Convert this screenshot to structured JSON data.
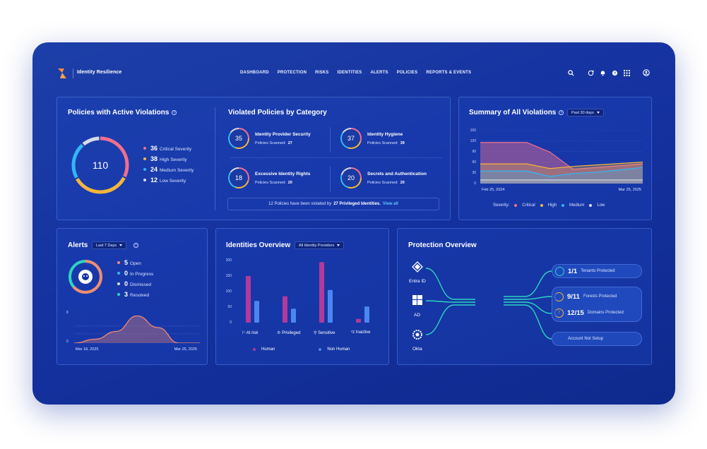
{
  "app": {
    "title": "Identity Resilience"
  },
  "nav": [
    "DASHBOARD",
    "PROTECTION",
    "RISKS",
    "IDENTITIES",
    "ALERTS",
    "POLICIES",
    "REPORTS & EVENTS"
  ],
  "top_icons": [
    "search-icon",
    "chat-icon",
    "bell-icon",
    "help-icon",
    "apps-grid-icon",
    "user-icon"
  ],
  "colors": {
    "critical": "#f06f8e",
    "high": "#f5b53c",
    "medium": "#32b6f5",
    "low": "#d7dbe6",
    "teal": "#2dd4bf",
    "human": "#b23a9a",
    "nonhuman": "#4c86f0"
  },
  "policies": {
    "title": "Policies with Active Violations",
    "total": "110",
    "items": [
      {
        "num": "36",
        "label": "Critical Severity",
        "value": 36
      },
      {
        "num": "38",
        "label": "High Severity",
        "value": 38
      },
      {
        "num": "24",
        "label": "Medium Severity",
        "value": 24
      },
      {
        "num": "12",
        "label": "Low Severity",
        "value": 12
      }
    ]
  },
  "categories": {
    "title": "Violated Policies by Category",
    "items": [
      {
        "count": "35",
        "name": "Identity Provider Security",
        "scanned_label": "Policies Scanned:",
        "scanned": "27"
      },
      {
        "count": "37",
        "name": "Identity Hygiene",
        "scanned_label": "Policies Scanned:",
        "scanned": "39"
      },
      {
        "count": "18",
        "name": "Excessive Identity Rights",
        "scanned_label": "Policies Scanned:",
        "scanned": "20"
      },
      {
        "count": "20",
        "name": "Secrets and Authentication",
        "scanned_label": "Policies Scanned:",
        "scanned": "20"
      }
    ],
    "footer_prefix": "12 Policies have been violated by",
    "footer_bold": "27 Privileged Identities.",
    "footer_link": "View all"
  },
  "summary": {
    "title": "Summary of All Violations",
    "range": "Past 30 days",
    "yticks": [
      "150",
      "120",
      "90",
      "60",
      "30",
      "0"
    ],
    "xstart": "Feb 25, 2024",
    "xend": "Mar 25, 2025",
    "legend_label": "Severity:",
    "legend": [
      "Critical",
      "High",
      "Medium",
      "Low"
    ]
  },
  "chart_data": [
    {
      "type": "area",
      "title": "Summary of All Violations",
      "x": [
        "Feb 25, 2024",
        "",
        "",
        "",
        "",
        "",
        "",
        "Mar 25, 2025"
      ],
      "ylim": [
        0,
        150
      ],
      "series": [
        {
          "name": "Critical",
          "values": [
            115,
            115,
            115,
            88,
            40,
            45,
            50,
            55
          ]
        },
        {
          "name": "High",
          "values": [
            55,
            55,
            55,
            42,
            48,
            52,
            56,
            60
          ]
        },
        {
          "name": "Medium",
          "values": [
            35,
            35,
            35,
            20,
            28,
            32,
            38,
            45
          ]
        },
        {
          "name": "Low",
          "values": [
            10,
            10,
            10,
            10,
            10,
            10,
            10,
            10
          ]
        }
      ]
    },
    {
      "type": "area",
      "title": "Alerts",
      "x": [
        "Mar 18, 2025",
        "",
        "",
        "",
        "",
        "",
        "Mar 25, 2025"
      ],
      "ylim": [
        0,
        8
      ],
      "series": [
        {
          "name": "",
          "values": [
            0,
            1,
            3,
            7,
            4,
            0,
            0
          ]
        }
      ]
    },
    {
      "type": "bar",
      "title": "Identities Overview",
      "categories": [
        "At risk",
        "Privileged",
        "Sensitive",
        "Inactive"
      ],
      "ylim": [
        0,
        200
      ],
      "series": [
        {
          "name": "Human",
          "values": [
            150,
            85,
            195,
            12
          ]
        },
        {
          "name": "Non Human",
          "values": [
            70,
            45,
            105,
            52
          ]
        }
      ]
    }
  ],
  "alerts": {
    "title": "Alerts",
    "range": "Last 7 Days",
    "items": [
      {
        "num": "5",
        "label": "Open"
      },
      {
        "num": "0",
        "label": "In Progress"
      },
      {
        "num": "0",
        "label": "Dismissed"
      },
      {
        "num": "3",
        "label": "Resolved"
      }
    ],
    "ytop": "8",
    "ybottom": "0",
    "xstart": "Mar 18, 2025",
    "xend": "Mar 25, 2025"
  },
  "identities": {
    "title": "Identities Overview",
    "filter": "All Identity Providers",
    "yticks": [
      "200",
      "150",
      "100",
      "50",
      "0"
    ],
    "legend": [
      "Human",
      "Non Human"
    ]
  },
  "protection": {
    "title": "Protection Overview",
    "sources": [
      "Entra ID",
      "AD",
      "Okta"
    ],
    "status": [
      {
        "num": "1/1",
        "label": "Tenants Protected",
        "fraction": 1.0
      },
      {
        "num": "9/11",
        "label": "Forests Protected",
        "fraction": 0.82
      },
      {
        "num": "12/15",
        "label": "Domains Protected",
        "fraction": 0.8
      },
      {
        "num": "",
        "label": "Account Not Setup",
        "fraction": 0
      }
    ]
  }
}
